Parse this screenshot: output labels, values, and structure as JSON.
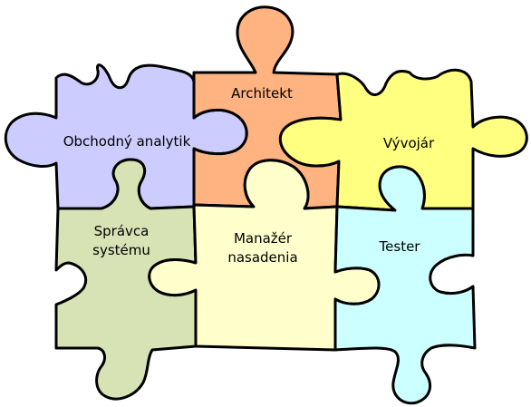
{
  "pieces": {
    "obchodny": {
      "label": [
        "Obchodný analytik"
      ],
      "color": "#ccccff"
    },
    "architekt": {
      "label": [
        "Architekt"
      ],
      "color": "#ffb380"
    },
    "vyvojar": {
      "label": [
        "Vývojár"
      ],
      "color": "#ffff80"
    },
    "spravca": {
      "label": [
        "Správca",
        "systému"
      ],
      "color": "#d7e3b5"
    },
    "manazer": {
      "label": [
        "Manažér",
        "nasadenia"
      ],
      "color": "#ffffcc"
    },
    "tester": {
      "label": [
        "Tester"
      ],
      "color": "#ccffff"
    }
  }
}
